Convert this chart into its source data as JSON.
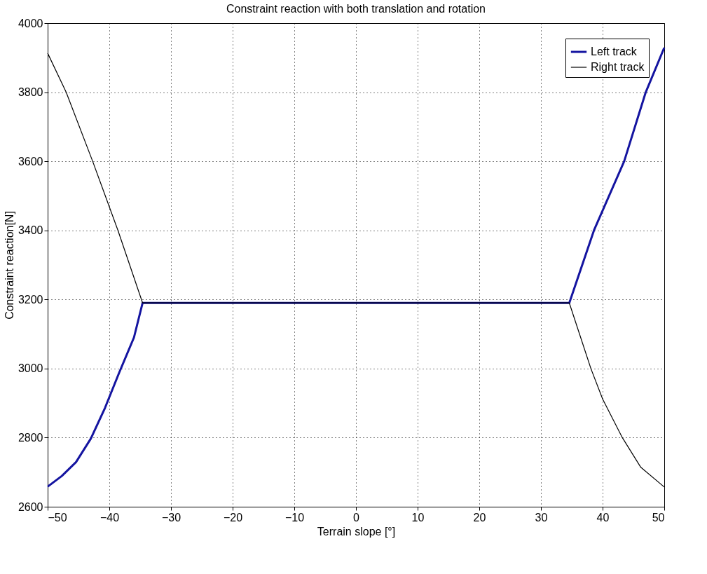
{
  "chart_data": {
    "type": "line",
    "title": "Constraint reaction with both translation and rotation",
    "xlabel": "Terrain slope [°]",
    "ylabel": "Constraint reaction[N]",
    "xlim": [
      -50,
      50
    ],
    "xticks": [
      -50,
      -40,
      -30,
      -20,
      -10,
      0,
      10,
      20,
      30,
      40,
      50
    ],
    "ylim": [
      2600,
      4000
    ],
    "yticks": [
      2600,
      2800,
      3000,
      3200,
      3400,
      3600,
      3800,
      4000
    ],
    "grid": true,
    "legend": "top right",
    "series": [
      {
        "name": "Left track",
        "color": "#1414a0",
        "x": [
          -50,
          -47.7,
          -45.4,
          -43.0,
          -40.7,
          -38.4,
          -36.0,
          -34.6,
          34.6,
          38.6,
          43.5,
          47.0,
          50
        ],
        "values": [
          2658,
          2689,
          2729,
          2797,
          2886,
          2988,
          3090,
          3190,
          3190,
          3400,
          3600,
          3800,
          3929
        ]
      },
      {
        "name": "Right track",
        "color": "#000000",
        "x": [
          -50,
          -47.0,
          -42.7,
          -38.6,
          -34.6,
          34.6,
          38.1,
          40,
          43.2,
          46.2,
          50
        ],
        "values": [
          3913,
          3800,
          3600,
          3400,
          3190,
          3190,
          3000,
          2912,
          2800,
          2714,
          2657
        ]
      }
    ]
  }
}
